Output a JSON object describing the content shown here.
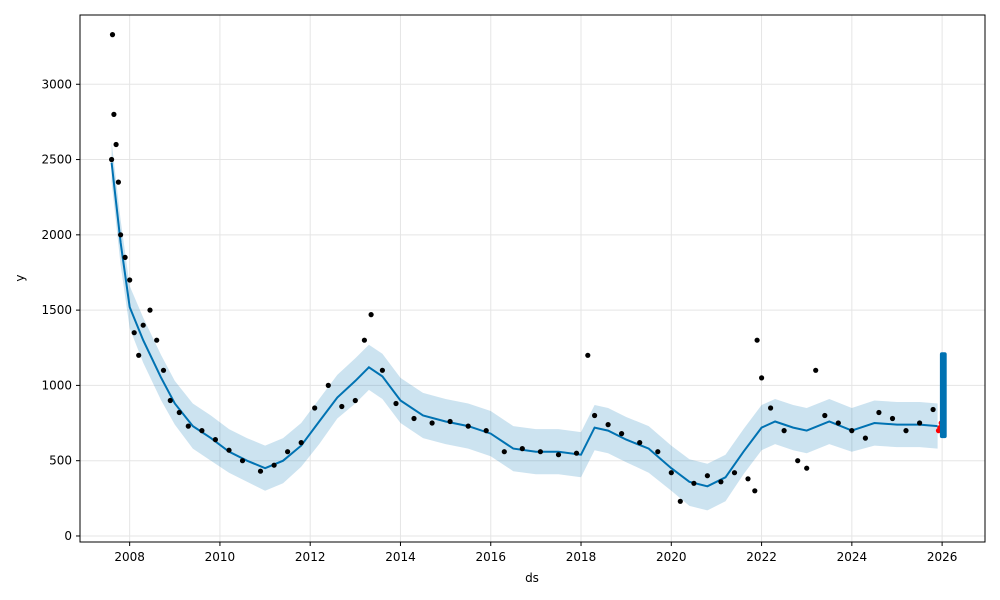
{
  "chart_data": {
    "type": "line",
    "xlabel": "ds",
    "ylabel": "y",
    "xlim": [
      2006.9,
      2026.95
    ],
    "ylim": [
      -40,
      3460
    ],
    "grid": true,
    "x_ticks": [
      2008,
      2010,
      2012,
      2014,
      2016,
      2018,
      2020,
      2022,
      2024,
      2026
    ],
    "y_ticks": [
      0,
      500,
      1000,
      1500,
      2000,
      2500,
      3000
    ],
    "colors": {
      "observed": "#000000",
      "forecast_line": "#0072B2",
      "uncertainty_band": "#0072B2",
      "forecast_highlight": "#0072B2",
      "recent_points": "#ff0000",
      "grid": "#e5e5e5"
    },
    "series": [
      {
        "kind": "forecast",
        "x": [
          2007.6,
          2007.8,
          2008.0,
          2008.3,
          2008.7,
          2009.0,
          2009.4,
          2009.8,
          2010.2,
          2010.6,
          2011.0,
          2011.4,
          2011.8,
          2012.2,
          2012.6,
          2013.0,
          2013.3,
          2013.6,
          2014.0,
          2014.5,
          2015.0,
          2015.5,
          2016.0,
          2016.5,
          2017.0,
          2017.5,
          2018.0,
          2018.3,
          2018.6,
          2019.0,
          2019.5,
          2020.0,
          2020.4,
          2020.8,
          2021.2,
          2021.6,
          2022.0,
          2022.3,
          2022.7,
          2023.0,
          2023.5,
          2024.0,
          2024.5,
          2025.0,
          2025.5,
          2025.9
        ],
        "yhat": [
          2480,
          1950,
          1520,
          1300,
          1050,
          880,
          730,
          650,
          560,
          500,
          450,
          500,
          600,
          760,
          920,
          1030,
          1120,
          1060,
          900,
          800,
          760,
          730,
          680,
          580,
          560,
          560,
          540,
          720,
          700,
          640,
          580,
          450,
          360,
          330,
          390,
          560,
          720,
          760,
          720,
          700,
          760,
          700,
          750,
          740,
          740,
          730
        ],
        "yhat_lower": [
          2350,
          1800,
          1380,
          1150,
          900,
          740,
          580,
          500,
          420,
          360,
          300,
          350,
          460,
          610,
          780,
          880,
          970,
          910,
          750,
          650,
          610,
          580,
          530,
          430,
          410,
          410,
          390,
          570,
          550,
          490,
          420,
          300,
          200,
          170,
          230,
          410,
          570,
          610,
          570,
          550,
          610,
          560,
          600,
          590,
          590,
          580
        ],
        "yhat_upper": [
          2620,
          2100,
          1660,
          1450,
          1200,
          1030,
          880,
          800,
          710,
          650,
          600,
          650,
          750,
          910,
          1070,
          1180,
          1270,
          1210,
          1050,
          950,
          910,
          880,
          830,
          730,
          710,
          710,
          690,
          870,
          850,
          790,
          730,
          600,
          510,
          480,
          540,
          710,
          870,
          910,
          870,
          850,
          910,
          850,
          900,
          890,
          890,
          880
        ]
      },
      {
        "kind": "observed",
        "x": [
          2007.6,
          2007.62,
          2007.65,
          2007.7,
          2007.75,
          2007.8,
          2007.9,
          2008.0,
          2008.1,
          2008.2,
          2008.3,
          2008.45,
          2008.6,
          2008.75,
          2008.9,
          2009.1,
          2009.3,
          2009.6,
          2009.9,
          2010.2,
          2010.5,
          2010.9,
          2011.2,
          2011.5,
          2011.8,
          2012.1,
          2012.4,
          2012.7,
          2013.0,
          2013.2,
          2013.35,
          2013.6,
          2013.9,
          2014.3,
          2014.7,
          2015.1,
          2015.5,
          2015.9,
          2016.3,
          2016.7,
          2017.1,
          2017.5,
          2017.9,
          2018.15,
          2018.3,
          2018.6,
          2018.9,
          2019.3,
          2019.7,
          2020.0,
          2020.2,
          2020.5,
          2020.8,
          2021.1,
          2021.4,
          2021.7,
          2021.85,
          2021.9,
          2022.0,
          2022.2,
          2022.5,
          2022.8,
          2023.0,
          2023.2,
          2023.4,
          2023.7,
          2024.0,
          2024.3,
          2024.6,
          2024.9,
          2025.2,
          2025.5,
          2025.8
        ],
        "y": [
          2500,
          3330,
          2800,
          2600,
          2350,
          2000,
          1850,
          1700,
          1350,
          1200,
          1400,
          1500,
          1300,
          1100,
          900,
          820,
          730,
          700,
          640,
          570,
          500,
          430,
          470,
          560,
          620,
          850,
          1000,
          860,
          900,
          1300,
          1470,
          1100,
          880,
          780,
          750,
          760,
          730,
          700,
          560,
          580,
          560,
          540,
          550,
          1200,
          800,
          740,
          680,
          620,
          560,
          420,
          230,
          350,
          400,
          360,
          420,
          380,
          300,
          1300,
          1050,
          850,
          700,
          500,
          450,
          1100,
          800,
          750,
          700,
          650,
          820,
          780,
          700,
          750,
          840
        ]
      },
      {
        "kind": "recent",
        "x": [
          2025.92,
          2025.95,
          2025.98,
          2026.01,
          2026.03
        ],
        "y": [
          700,
          720,
          750,
          760,
          820
        ]
      },
      {
        "kind": "forecast_highlight",
        "x": [
          2025.95,
          2026.1
        ],
        "y_range": [
          650,
          1220
        ]
      }
    ]
  }
}
